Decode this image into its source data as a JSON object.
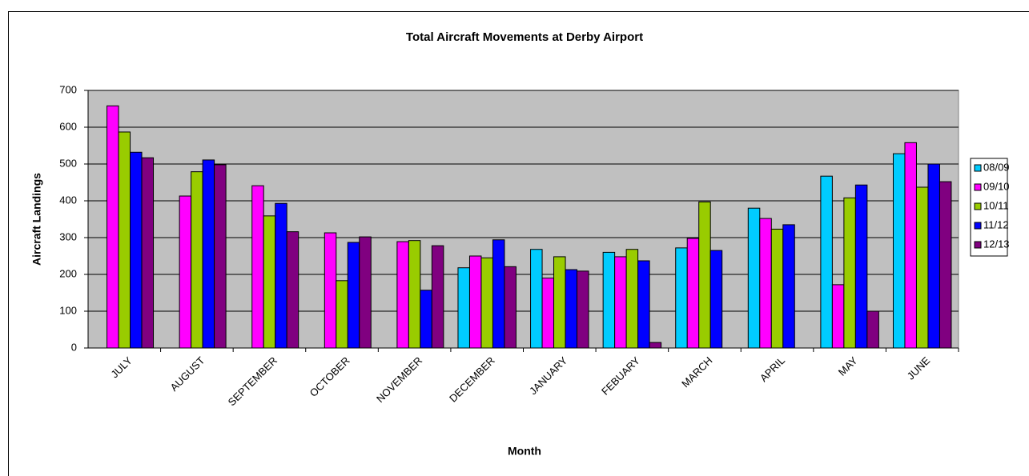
{
  "chart_data": {
    "type": "bar",
    "title": "Total Aircraft Movements at Derby Airport",
    "x_label": "Month",
    "y_label": "Aircraft Landings",
    "categories": [
      "JULY",
      "AUGUST",
      "SEPTEMBER",
      "OCTOBER",
      "NOVEMBER",
      "DECEMBER",
      "JANUARY",
      "FEBUARY",
      "MARCH",
      "APRIL",
      "MAY",
      "JUNE"
    ],
    "series": [
      {
        "name": "08/09",
        "color": "#00ccff",
        "values": [
          null,
          null,
          null,
          null,
          null,
          218,
          268,
          260,
          272,
          380,
          467,
          528
        ]
      },
      {
        "name": "09/10",
        "color": "#ff00ff",
        "values": [
          658,
          413,
          441,
          313,
          289,
          250,
          190,
          248,
          298,
          352,
          172,
          558
        ]
      },
      {
        "name": "10/11",
        "color": "#99cc00",
        "values": [
          587,
          479,
          359,
          183,
          292,
          245,
          248,
          268,
          397,
          323,
          408,
          437
        ]
      },
      {
        "name": "11/12",
        "color": "#0000ff",
        "values": [
          532,
          511,
          393,
          287,
          157,
          294,
          213,
          237,
          265,
          335,
          443,
          500
        ]
      },
      {
        "name": "12/13",
        "color": "#800080",
        "values": [
          517,
          498,
          316,
          302,
          278,
          221,
          209,
          15,
          null,
          null,
          100,
          452
        ]
      }
    ],
    "ylim": [
      0,
      700
    ],
    "yticks": [
      0,
      100,
      200,
      300,
      400,
      500,
      600,
      700
    ],
    "grid": true,
    "legend": "right",
    "plot_background": "#c0c0c0"
  }
}
